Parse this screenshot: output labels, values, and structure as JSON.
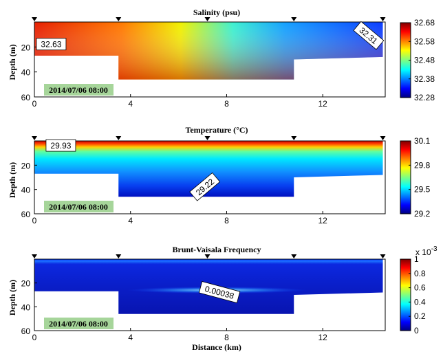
{
  "chart_data": [
    {
      "type": "heatmap",
      "title": "Salinity (psu)",
      "ylabel": "Depth (m)",
      "xlabel": "",
      "xlim": [
        0,
        14.6
      ],
      "ylim": [
        60,
        0
      ],
      "xticks": [
        "0",
        "4",
        "8",
        "12"
      ],
      "yticks": [
        "20",
        "40",
        "60"
      ],
      "station_markers_km": [
        0,
        3.5,
        7.2,
        10.8,
        14.5
      ],
      "bottom_profile": [
        {
          "x": 0,
          "depth": 27
        },
        {
          "x": 3.5,
          "depth": 27
        },
        {
          "x": 3.5,
          "depth": 46
        },
        {
          "x": 10.8,
          "depth": 46
        },
        {
          "x": 10.8,
          "depth": 30
        },
        {
          "x": 14.5,
          "depth": 28
        }
      ],
      "colorbar": {
        "min": 32.28,
        "max": 32.68,
        "ticks": [
          "32.68",
          "32.58",
          "32.48",
          "32.38",
          "32.28"
        ]
      },
      "annotations": [
        {
          "text": "32.63",
          "x": 0.7,
          "y": 18,
          "rotate": 0
        },
        {
          "text": "32.31",
          "x": 13.9,
          "y": 11,
          "rotate": 40
        }
      ],
      "timestamp": "2014/07/06 08:00"
    },
    {
      "type": "heatmap",
      "title": "Temperature (°C)",
      "ylabel": "Depth (m)",
      "xlabel": "",
      "xlim": [
        0,
        14.6
      ],
      "ylim": [
        60,
        0
      ],
      "xticks": [
        "0",
        "4",
        "8",
        "12"
      ],
      "yticks": [
        "20",
        "40",
        "60"
      ],
      "station_markers_km": [
        0,
        3.5,
        7.2,
        10.8,
        14.5
      ],
      "bottom_profile": [
        {
          "x": 0,
          "depth": 27
        },
        {
          "x": 3.5,
          "depth": 27
        },
        {
          "x": 3.5,
          "depth": 46
        },
        {
          "x": 10.8,
          "depth": 46
        },
        {
          "x": 10.8,
          "depth": 30
        },
        {
          "x": 14.5,
          "depth": 28
        }
      ],
      "colorbar": {
        "min": 29.2,
        "max": 30.1,
        "ticks": [
          "30.1",
          "29.8",
          "29.5",
          "29.2"
        ]
      },
      "annotations": [
        {
          "text": "29.93",
          "x": 1.1,
          "y": 4,
          "rotate": 0
        },
        {
          "text": "29.22",
          "x": 7.1,
          "y": 38,
          "rotate": -40
        }
      ],
      "timestamp": "2014/07/06 08:00"
    },
    {
      "type": "heatmap",
      "title": "Brunt-Vaisala Frequency",
      "ylabel": "Depth (m)",
      "xlabel": "Distance (km)",
      "xlim": [
        0,
        14.6
      ],
      "ylim": [
        60,
        0
      ],
      "xticks": [
        "0",
        "4",
        "8",
        "12"
      ],
      "yticks": [
        "20",
        "40",
        "60"
      ],
      "station_markers_km": [
        0,
        3.5,
        7.2,
        10.8,
        14.5
      ],
      "bottom_profile": [
        {
          "x": 0,
          "depth": 27
        },
        {
          "x": 3.5,
          "depth": 27
        },
        {
          "x": 3.5,
          "depth": 46
        },
        {
          "x": 10.8,
          "depth": 46
        },
        {
          "x": 10.8,
          "depth": 30
        },
        {
          "x": 14.5,
          "depth": 28
        }
      ],
      "colorbar": {
        "min": 0,
        "max": 1,
        "multiplier": "x 10",
        "exponent": "-3",
        "ticks": [
          "1",
          "0.8",
          "0.6",
          "0.4",
          "0.2",
          "0"
        ]
      },
      "annotations": [
        {
          "text": "0.00038",
          "x": 7.7,
          "y": 28,
          "rotate": 15
        }
      ],
      "timestamp": "2014/07/06 08:00"
    }
  ],
  "colors": {
    "stamp_bg": "#a6d59a",
    "label_box": "#ffffff"
  }
}
